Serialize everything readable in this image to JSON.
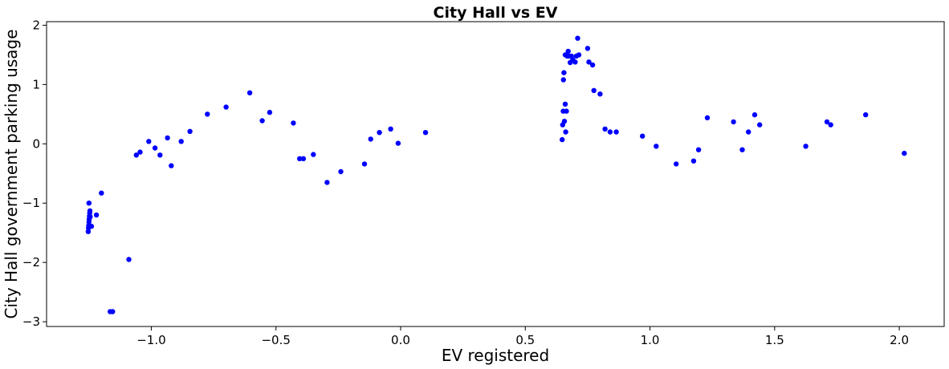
{
  "chart_data": {
    "type": "scatter",
    "title": "City Hall vs EV",
    "xlabel": "EV registered",
    "ylabel": "City Hall government parking usage",
    "xlim": [
      -1.42,
      2.18
    ],
    "ylim": [
      -3.08,
      2.06
    ],
    "xticks": [
      -1.0,
      -0.5,
      0.0,
      0.5,
      1.0,
      1.5,
      2.0
    ],
    "xtick_labels": [
      "−1.0",
      "−0.5",
      "0.0",
      "0.5",
      "1.0",
      "1.5",
      "2.0"
    ],
    "yticks": [
      -3,
      -2,
      -1,
      0,
      1,
      2
    ],
    "ytick_labels": [
      "−3",
      "−2",
      "−1",
      "0",
      "1",
      "2"
    ],
    "grid": false,
    "marker_color": "#0000ff",
    "series": [
      {
        "x": [
          -1.253,
          -1.252,
          -1.251,
          -1.25,
          -1.249,
          -1.248,
          -1.247,
          -1.246,
          -1.25,
          -1.245,
          -1.24,
          -1.22,
          -1.2,
          -1.09,
          -1.165,
          -1.155,
          -1.06,
          -1.045,
          -1.01,
          -0.985,
          -0.965,
          -0.935,
          -0.92,
          -0.88,
          -0.845,
          -0.775,
          -0.7,
          -0.605,
          -0.555,
          -0.525,
          -0.43,
          -0.405,
          -0.39,
          -0.35,
          -0.295,
          -0.24,
          -0.145,
          -0.12,
          -0.085,
          -0.04,
          -0.01,
          0.1,
          0.648,
          0.65,
          0.652,
          0.653,
          0.655,
          0.657,
          0.66,
          0.662,
          0.665,
          0.66,
          0.668,
          0.672,
          0.675,
          0.68,
          0.685,
          0.69,
          0.7,
          0.705,
          0.71,
          0.715,
          0.75,
          0.755,
          0.77,
          0.775,
          0.8,
          0.82,
          0.84,
          0.865,
          0.97,
          1.025,
          1.105,
          1.175,
          1.195,
          1.23,
          1.335,
          1.37,
          1.395,
          1.42,
          1.44,
          1.625,
          1.71,
          1.725,
          1.865,
          2.02
        ],
        "y": [
          -1.48,
          -1.42,
          -1.38,
          -1.32,
          -1.27,
          -1.22,
          -1.17,
          -1.13,
          -1.0,
          -1.23,
          -1.39,
          -1.2,
          -0.83,
          -1.95,
          -2.83,
          -2.83,
          -0.19,
          -0.14,
          0.04,
          -0.07,
          -0.19,
          0.1,
          -0.37,
          0.04,
          0.21,
          0.5,
          0.62,
          0.86,
          0.39,
          0.53,
          0.35,
          -0.25,
          -0.25,
          -0.18,
          -0.65,
          -0.47,
          -0.34,
          0.08,
          0.19,
          0.25,
          0.01,
          0.19,
          0.07,
          0.32,
          0.55,
          1.08,
          1.2,
          0.38,
          0.67,
          0.2,
          0.55,
          1.5,
          1.48,
          1.56,
          1.48,
          1.37,
          1.48,
          1.42,
          1.38,
          1.48,
          1.78,
          1.5,
          1.61,
          1.38,
          1.33,
          0.9,
          0.84,
          0.25,
          0.2,
          0.2,
          0.13,
          -0.04,
          -0.34,
          -0.29,
          -0.1,
          0.44,
          0.37,
          -0.1,
          0.2,
          0.49,
          0.32,
          -0.04,
          0.37,
          0.32,
          0.49,
          -0.16
        ]
      }
    ]
  }
}
